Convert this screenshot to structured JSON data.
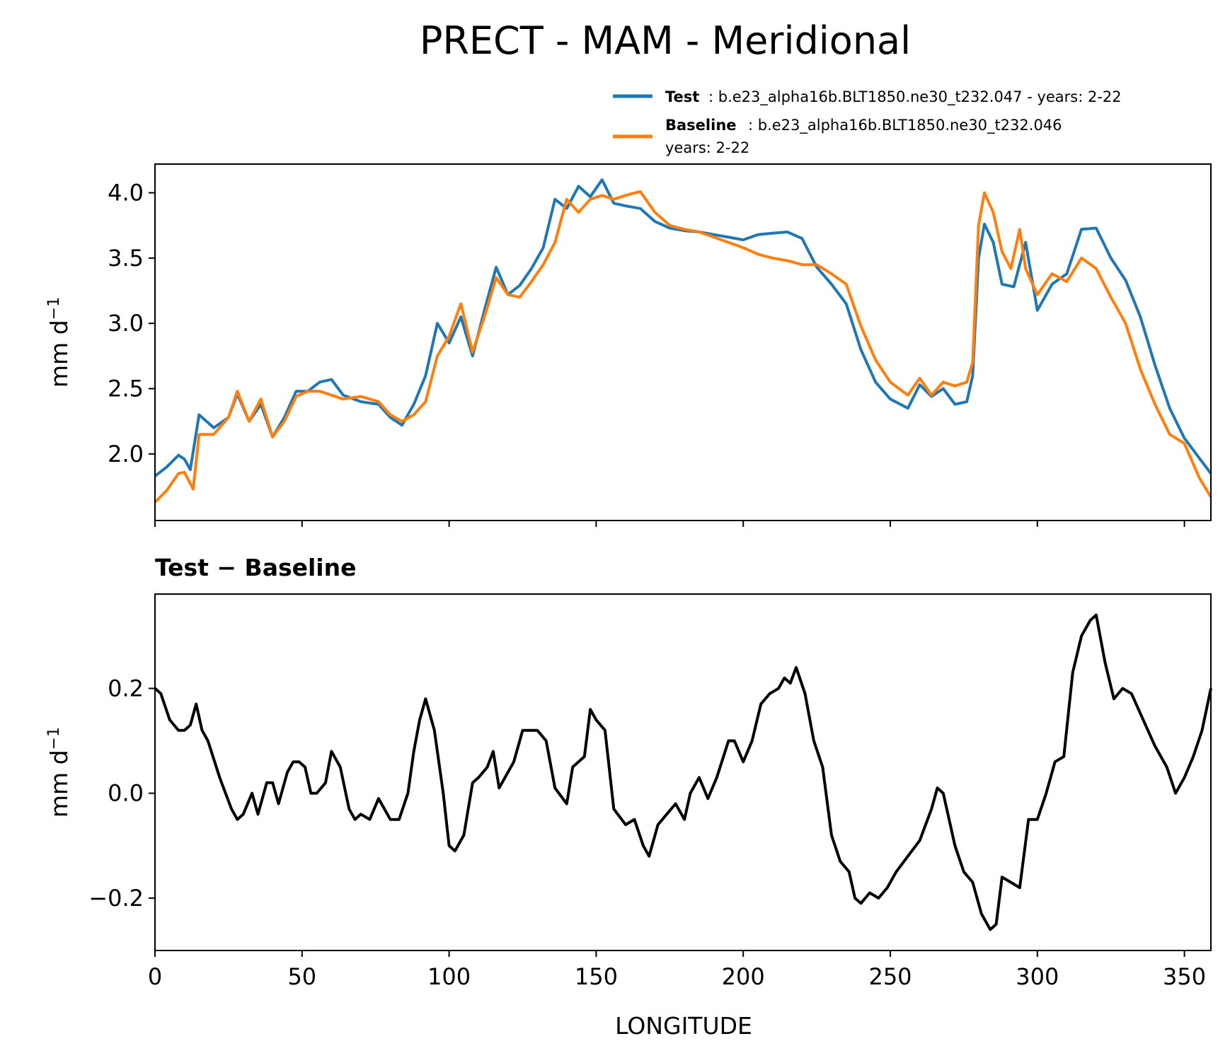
{
  "title": "PRECT - MAM - Meridional",
  "legend": {
    "test_name": "Test",
    "test_desc": ": b.e23_alpha16b.BLT1850.ne30_t232.047 - years: 2-22",
    "base_name": "Baseline",
    "base_desc": ": b.e23_alpha16b.BLT1850.ne30_t232.046",
    "base_desc2": "years: 2-22"
  },
  "colors": {
    "test": "#1f77b4",
    "baseline": "#ff7f0e",
    "diff": "#000000"
  },
  "chart_data": [
    {
      "type": "line",
      "ylabel": "mm d",
      "ylabel_sup": "−1",
      "xlim": [
        0,
        359
      ],
      "ylim": [
        1.49,
        4.22
      ],
      "yticks": [
        2.0,
        2.5,
        3.0,
        3.5,
        4.0
      ],
      "ytick_labels": [
        "2.0",
        "2.5",
        "3.0",
        "3.5",
        "4.0"
      ],
      "xticks": [
        0,
        50,
        100,
        150,
        200,
        250,
        300,
        350
      ],
      "series": [
        {
          "name": "Test",
          "x": [
            0,
            4,
            8,
            10,
            12,
            15,
            20,
            25,
            28,
            32,
            36,
            40,
            44,
            48,
            52,
            56,
            60,
            64,
            70,
            76,
            80,
            84,
            88,
            92,
            96,
            100,
            104,
            108,
            112,
            116,
            120,
            124,
            128,
            132,
            136,
            140,
            144,
            148,
            152,
            156,
            160,
            165,
            170,
            175,
            180,
            185,
            190,
            195,
            200,
            205,
            210,
            215,
            220,
            225,
            230,
            235,
            240,
            245,
            250,
            256,
            260,
            264,
            268,
            272,
            276,
            278,
            280,
            282,
            285,
            288,
            292,
            296,
            300,
            305,
            310,
            315,
            320,
            325,
            330,
            335,
            340,
            345,
            350,
            355,
            359
          ],
          "values": [
            1.83,
            1.9,
            1.99,
            1.96,
            1.88,
            2.3,
            2.2,
            2.28,
            2.46,
            2.25,
            2.38,
            2.13,
            2.28,
            2.48,
            2.48,
            2.55,
            2.57,
            2.45,
            2.4,
            2.38,
            2.28,
            2.22,
            2.38,
            2.6,
            3.0,
            2.85,
            3.05,
            2.75,
            3.1,
            3.43,
            3.22,
            3.29,
            3.42,
            3.58,
            3.95,
            3.88,
            4.05,
            3.97,
            4.1,
            3.92,
            3.9,
            3.88,
            3.78,
            3.73,
            3.71,
            3.7,
            3.68,
            3.66,
            3.64,
            3.68,
            3.69,
            3.7,
            3.65,
            3.43,
            3.3,
            3.15,
            2.8,
            2.55,
            2.42,
            2.35,
            2.53,
            2.44,
            2.5,
            2.38,
            2.4,
            2.6,
            3.5,
            3.76,
            3.62,
            3.3,
            3.28,
            3.62,
            3.1,
            3.3,
            3.38,
            3.72,
            3.73,
            3.5,
            3.33,
            3.05,
            2.68,
            2.35,
            2.12,
            1.97,
            1.85
          ]
        },
        {
          "name": "Baseline",
          "x": [
            0,
            4,
            8,
            10,
            13,
            15,
            20,
            25,
            28,
            32,
            36,
            40,
            44,
            48,
            52,
            56,
            60,
            64,
            70,
            76,
            80,
            84,
            88,
            92,
            96,
            100,
            104,
            108,
            112,
            116,
            120,
            124,
            128,
            132,
            136,
            140,
            144,
            148,
            152,
            156,
            160,
            165,
            170,
            175,
            180,
            185,
            190,
            195,
            200,
            205,
            210,
            215,
            220,
            225,
            230,
            235,
            240,
            245,
            250,
            256,
            260,
            264,
            268,
            272,
            276,
            278,
            280,
            282,
            285,
            288,
            291,
            294,
            296,
            300,
            305,
            310,
            315,
            320,
            325,
            330,
            335,
            340,
            345,
            350,
            355,
            359
          ],
          "values": [
            1.63,
            1.72,
            1.85,
            1.86,
            1.73,
            2.15,
            2.15,
            2.28,
            2.48,
            2.25,
            2.42,
            2.13,
            2.25,
            2.44,
            2.48,
            2.48,
            2.45,
            2.42,
            2.44,
            2.4,
            2.3,
            2.25,
            2.3,
            2.4,
            2.75,
            2.9,
            3.15,
            2.78,
            3.05,
            3.35,
            3.22,
            3.2,
            3.32,
            3.45,
            3.62,
            3.95,
            3.85,
            3.95,
            3.98,
            3.95,
            3.98,
            4.01,
            3.85,
            3.75,
            3.72,
            3.7,
            3.66,
            3.62,
            3.58,
            3.53,
            3.5,
            3.48,
            3.45,
            3.45,
            3.38,
            3.3,
            2.98,
            2.72,
            2.55,
            2.45,
            2.58,
            2.45,
            2.55,
            2.52,
            2.55,
            2.7,
            3.75,
            4.0,
            3.85,
            3.55,
            3.42,
            3.72,
            3.42,
            3.22,
            3.38,
            3.32,
            3.5,
            3.42,
            3.2,
            3.0,
            2.65,
            2.38,
            2.15,
            2.08,
            1.82,
            1.67
          ]
        }
      ]
    },
    {
      "type": "line",
      "title": "Test − Baseline",
      "xlabel": "LONGITUDE",
      "ylabel": "mm d",
      "ylabel_sup": "−1",
      "xlim": [
        0,
        359
      ],
      "ylim": [
        -0.3,
        0.38
      ],
      "yticks": [
        -0.2,
        0.0,
        0.2
      ],
      "ytick_labels": [
        "−0.2",
        "0.0",
        "0.2"
      ],
      "xticks": [
        0,
        50,
        100,
        150,
        200,
        250,
        300,
        350
      ],
      "xtick_labels": [
        "0",
        "50",
        "100",
        "150",
        "200",
        "250",
        "300",
        "350"
      ],
      "series": [
        {
          "name": "Test − Baseline",
          "x": [
            0,
            2,
            5,
            8,
            10,
            12,
            14,
            16,
            18,
            22,
            26,
            28,
            30,
            33,
            35,
            38,
            40,
            42,
            45,
            47,
            49,
            51,
            53,
            55,
            58,
            60,
            63,
            66,
            68,
            70,
            73,
            76,
            78,
            80,
            83,
            86,
            88,
            90,
            92,
            95,
            98,
            100,
            102,
            105,
            108,
            110,
            113,
            115,
            117,
            119,
            122,
            125,
            128,
            130,
            133,
            136,
            140,
            142,
            146,
            148,
            150,
            153,
            156,
            160,
            163,
            166,
            168,
            171,
            174,
            177,
            180,
            182,
            185,
            188,
            191,
            195,
            197,
            200,
            203,
            206,
            209,
            212,
            214,
            216,
            218,
            221,
            224,
            227,
            230,
            233,
            236,
            238,
            240,
            243,
            246,
            249,
            252,
            256,
            260,
            264,
            266,
            268,
            272,
            275,
            278,
            281,
            284,
            286,
            288,
            291,
            294,
            297,
            300,
            303,
            306,
            309,
            312,
            315,
            318,
            320,
            323,
            326,
            329,
            332,
            336,
            340,
            344,
            347,
            350,
            353,
            356,
            359
          ],
          "values": [
            0.2,
            0.19,
            0.14,
            0.12,
            0.12,
            0.13,
            0.17,
            0.12,
            0.1,
            0.03,
            -0.03,
            -0.05,
            -0.04,
            0.0,
            -0.04,
            0.02,
            0.02,
            -0.02,
            0.04,
            0.06,
            0.06,
            0.05,
            0.0,
            0.0,
            0.02,
            0.08,
            0.05,
            -0.03,
            -0.05,
            -0.04,
            -0.05,
            -0.01,
            -0.03,
            -0.05,
            -0.05,
            0.0,
            0.08,
            0.14,
            0.18,
            0.12,
            0.0,
            -0.1,
            -0.11,
            -0.08,
            0.02,
            0.03,
            0.05,
            0.08,
            0.01,
            0.03,
            0.06,
            0.12,
            0.12,
            0.12,
            0.1,
            0.01,
            -0.02,
            0.05,
            0.07,
            0.16,
            0.14,
            0.12,
            -0.03,
            -0.06,
            -0.05,
            -0.1,
            -0.12,
            -0.06,
            -0.04,
            -0.02,
            -0.05,
            0.0,
            0.03,
            -0.01,
            0.03,
            0.1,
            0.1,
            0.06,
            0.1,
            0.17,
            0.19,
            0.2,
            0.22,
            0.21,
            0.24,
            0.19,
            0.1,
            0.05,
            -0.08,
            -0.13,
            -0.15,
            -0.2,
            -0.21,
            -0.19,
            -0.2,
            -0.18,
            -0.15,
            -0.12,
            -0.09,
            -0.03,
            0.01,
            0.0,
            -0.1,
            -0.15,
            -0.17,
            -0.23,
            -0.26,
            -0.25,
            -0.16,
            -0.17,
            -0.18,
            -0.05,
            -0.05,
            0.0,
            0.06,
            0.07,
            0.23,
            0.3,
            0.33,
            0.34,
            0.25,
            0.18,
            0.2,
            0.19,
            0.14,
            0.09,
            0.05,
            0.0,
            0.03,
            0.07,
            0.12,
            0.2
          ]
        }
      ]
    }
  ]
}
